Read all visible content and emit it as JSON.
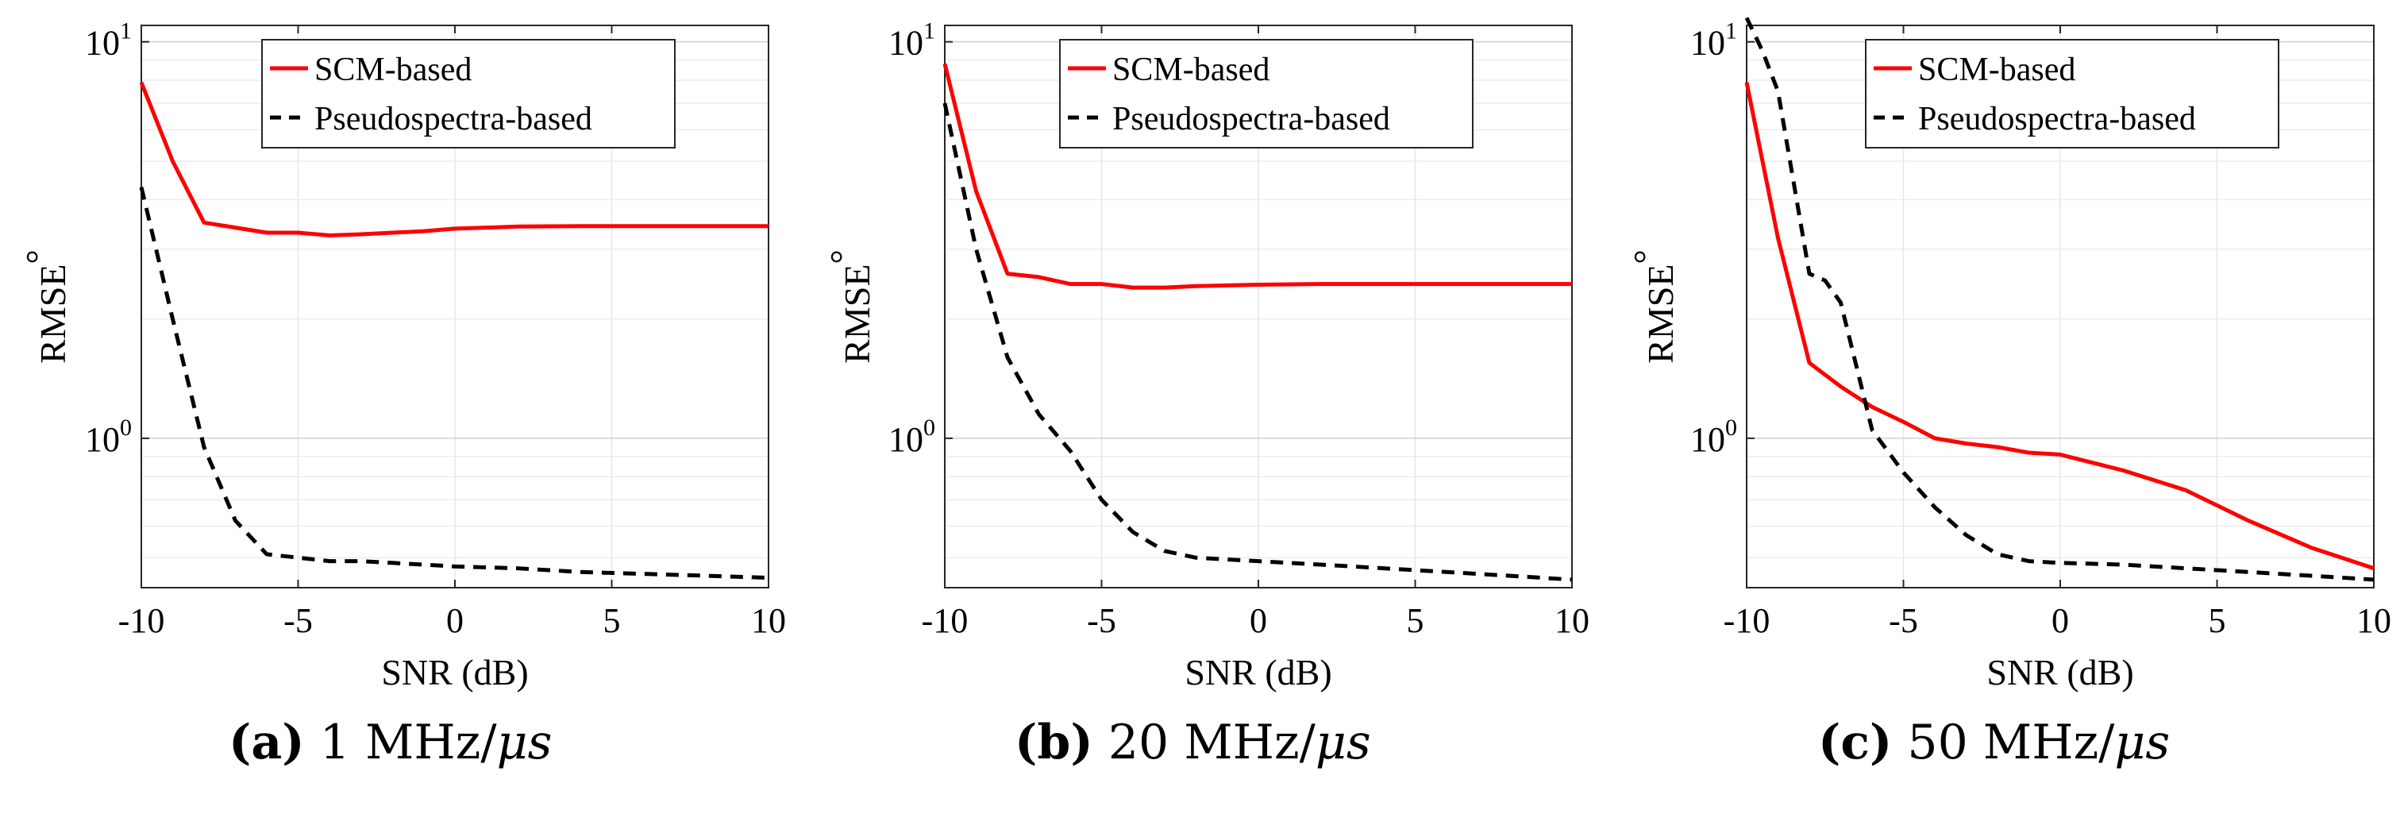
{
  "figure": {
    "captions": [
      {
        "label": "(a)",
        "text": "1 MHz/",
        "unit": "μs"
      },
      {
        "label": "(b)",
        "text": "20 MHz/",
        "unit": "μs"
      },
      {
        "label": "(c)",
        "text": "50 MHz/",
        "unit": "μs"
      }
    ]
  },
  "chart_data": [
    {
      "type": "line",
      "title": "",
      "xlabel": "SNR (dB)",
      "ylabel": "RMSE",
      "ylabel_suffix": "°",
      "xlim": [
        -10,
        10
      ],
      "ylim": [
        0.42,
        11
      ],
      "yscale": "log",
      "grid": true,
      "legend_position": "top-center",
      "x_ticks": [
        "-10",
        "-5",
        "0",
        "5",
        "10"
      ],
      "y_ticks": [
        {
          "base": "10",
          "exp": "0"
        },
        {
          "base": "10",
          "exp": "1"
        }
      ],
      "series": [
        {
          "name": "SCM-based",
          "color": "#ff0000",
          "style": "solid",
          "x": [
            -10,
            -9,
            -8,
            -7,
            -6,
            -5,
            -4,
            -3,
            -2,
            -1,
            0,
            2,
            4,
            6,
            8,
            10
          ],
          "y": [
            7.9,
            5.0,
            3.5,
            3.4,
            3.3,
            3.3,
            3.25,
            3.27,
            3.3,
            3.33,
            3.38,
            3.42,
            3.43,
            3.43,
            3.43,
            3.43
          ]
        },
        {
          "name": "Pseudospectra-based",
          "color": "#000000",
          "style": "dashed",
          "x": [
            -10,
            -9,
            -8,
            -7,
            -6,
            -5,
            -4,
            -3,
            -2,
            -1,
            0,
            2,
            4,
            6,
            8,
            10
          ],
          "y": [
            4.3,
            2.0,
            0.95,
            0.62,
            0.51,
            0.5,
            0.49,
            0.49,
            0.485,
            0.48,
            0.475,
            0.47,
            0.46,
            0.455,
            0.45,
            0.445
          ]
        }
      ]
    },
    {
      "type": "line",
      "title": "",
      "xlabel": "SNR (dB)",
      "ylabel": "RMSE",
      "ylabel_suffix": "°",
      "xlim": [
        -10,
        10
      ],
      "ylim": [
        0.42,
        11
      ],
      "yscale": "log",
      "grid": true,
      "legend_position": "top-center",
      "x_ticks": [
        "-10",
        "-5",
        "0",
        "5",
        "10"
      ],
      "y_ticks": [
        {
          "base": "10",
          "exp": "0"
        },
        {
          "base": "10",
          "exp": "1"
        }
      ],
      "series": [
        {
          "name": "SCM-based",
          "color": "#ff0000",
          "style": "solid",
          "x": [
            -10,
            -9,
            -8,
            -7,
            -6,
            -5,
            -4,
            -3,
            -2,
            -1,
            0,
            2,
            4,
            6,
            8,
            10
          ],
          "y": [
            8.8,
            4.2,
            2.6,
            2.55,
            2.45,
            2.45,
            2.4,
            2.4,
            2.42,
            2.43,
            2.44,
            2.45,
            2.45,
            2.45,
            2.45,
            2.45
          ]
        },
        {
          "name": "Pseudospectra-based",
          "color": "#000000",
          "style": "dashed",
          "x": [
            -10,
            -9,
            -8,
            -7,
            -6,
            -5,
            -4,
            -3,
            -2,
            -1,
            0,
            2,
            4,
            6,
            8,
            10
          ],
          "y": [
            7.0,
            3.0,
            1.6,
            1.15,
            0.93,
            0.7,
            0.58,
            0.52,
            0.5,
            0.495,
            0.49,
            0.48,
            0.47,
            0.46,
            0.45,
            0.44
          ]
        }
      ]
    },
    {
      "type": "line",
      "title": "",
      "xlabel": "SNR (dB)",
      "ylabel": "RMSE",
      "ylabel_suffix": "°",
      "xlim": [
        -10,
        10
      ],
      "ylim": [
        0.42,
        11
      ],
      "yscale": "log",
      "grid": true,
      "legend_position": "top-center",
      "x_ticks": [
        "-10",
        "-5",
        "0",
        "5",
        "10"
      ],
      "y_ticks": [
        {
          "base": "10",
          "exp": "0"
        },
        {
          "base": "10",
          "exp": "1"
        }
      ],
      "series": [
        {
          "name": "SCM-based",
          "color": "#ff0000",
          "style": "solid",
          "x": [
            -10,
            -9,
            -8,
            -7,
            -6,
            -5,
            -4,
            -3,
            -2,
            -1,
            0,
            2,
            4,
            6,
            8,
            10
          ],
          "y": [
            7.9,
            3.2,
            1.55,
            1.35,
            1.2,
            1.1,
            1.0,
            0.97,
            0.95,
            0.92,
            0.91,
            0.83,
            0.74,
            0.62,
            0.53,
            0.47
          ]
        },
        {
          "name": "Pseudospectra-based",
          "color": "#000000",
          "style": "dashed",
          "x": [
            -10,
            -9.5,
            -9,
            -8,
            -7.5,
            -7,
            -6,
            -5,
            -4,
            -3,
            -2,
            -1,
            0,
            2,
            4,
            6,
            8,
            10
          ],
          "y": [
            11.5,
            9.5,
            7.5,
            2.6,
            2.5,
            2.2,
            1.05,
            0.82,
            0.67,
            0.57,
            0.51,
            0.49,
            0.485,
            0.48,
            0.47,
            0.46,
            0.45,
            0.44
          ]
        }
      ]
    }
  ]
}
